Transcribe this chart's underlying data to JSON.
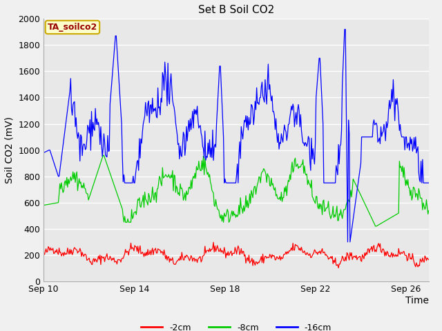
{
  "title": "Set B Soil CO2",
  "ylabel": "Soil CO2 (mV)",
  "xlabel": "Time",
  "legend_label": "TA_soilco2",
  "series_labels": [
    "-2cm",
    "-8cm",
    "-16cm"
  ],
  "series_colors": [
    "#ff0000",
    "#00cc00",
    "#0000ff"
  ],
  "xlim_start": 0,
  "xlim_end": 17,
  "ylim": [
    0,
    2000
  ],
  "yticks": [
    0,
    200,
    400,
    600,
    800,
    1000,
    1200,
    1400,
    1600,
    1800,
    2000
  ],
  "xtick_positions": [
    0,
    4,
    8,
    12,
    16
  ],
  "xtick_labels": [
    "Sep 10",
    "Sep 14",
    "Sep 18",
    "Sep 22",
    "Sep 26"
  ],
  "plot_bg_color": "#e8e8e8",
  "fig_bg_color": "#f0f0f0",
  "grid_color": "#ffffff",
  "legend_box_facecolor": "#ffffcc",
  "legend_box_edgecolor": "#ccaa00",
  "title_fontsize": 11,
  "axis_label_fontsize": 10,
  "tick_fontsize": 9,
  "legend_fontsize": 9
}
